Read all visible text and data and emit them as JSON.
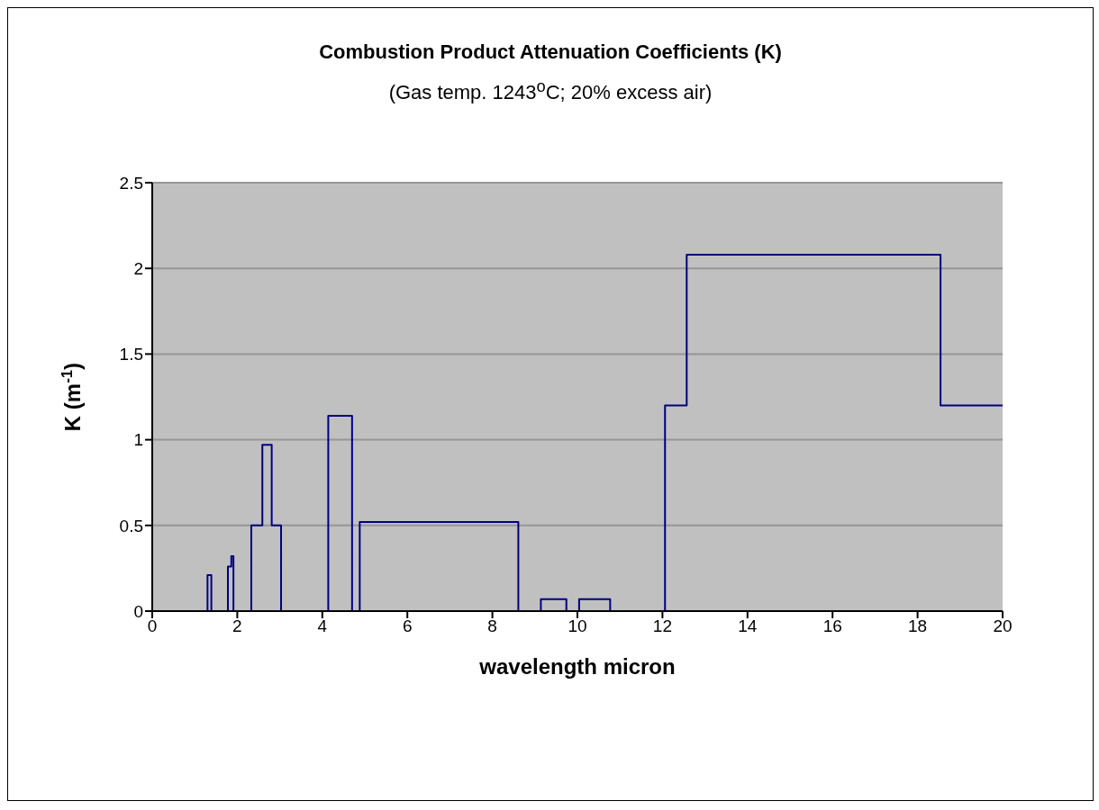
{
  "chart_data": {
    "type": "line",
    "title": "Combustion Product Attenuation Coefficients (K)",
    "subtitle": "(Gas temp. 1243$^{o}$C; 20% excess air)",
    "xlabel": "wavelength micron",
    "ylabel": "K (m$^{-1}$)",
    "series": [
      {
        "color": "#000080",
        "x": [
          1.3,
          1.3,
          1.39,
          1.39,
          1.78,
          1.78,
          1.86,
          1.86,
          1.91,
          1.91,
          2.33,
          2.33,
          2.59,
          2.59,
          2.81,
          2.81,
          3.03,
          3.03,
          4.14,
          4.14,
          4.7,
          4.7,
          4.88,
          4.88,
          8.61,
          8.61,
          9.14,
          9.14,
          9.74,
          9.74,
          10.04,
          10.04,
          10.77,
          10.77,
          12.06,
          12.06,
          12.57,
          12.57,
          18.54,
          18.54,
          20
        ],
        "values": [
          0,
          0.21,
          0.21,
          0,
          0,
          0.26,
          0.26,
          0.32,
          0.32,
          0,
          0,
          0.5,
          0.5,
          0.97,
          0.97,
          0.5,
          0.5,
          0,
          0,
          1.14,
          1.14,
          0,
          0,
          0.52,
          0.52,
          0,
          0,
          0.07,
          0.07,
          0,
          0,
          0.07,
          0.07,
          0,
          0,
          1.2,
          1.2,
          2.08,
          2.08,
          1.2,
          1.2
        ]
      }
    ],
    "xlim": [
      0,
      20
    ],
    "xticks": [
      0,
      2,
      4,
      6,
      8,
      10,
      12,
      14,
      16,
      18,
      20
    ],
    "ylim": [
      0,
      2.5
    ],
    "yticks": [
      0,
      0.5,
      1,
      1.5,
      2,
      2.5
    ],
    "grid": "y",
    "marker": "none",
    "line_style": "solid"
  }
}
